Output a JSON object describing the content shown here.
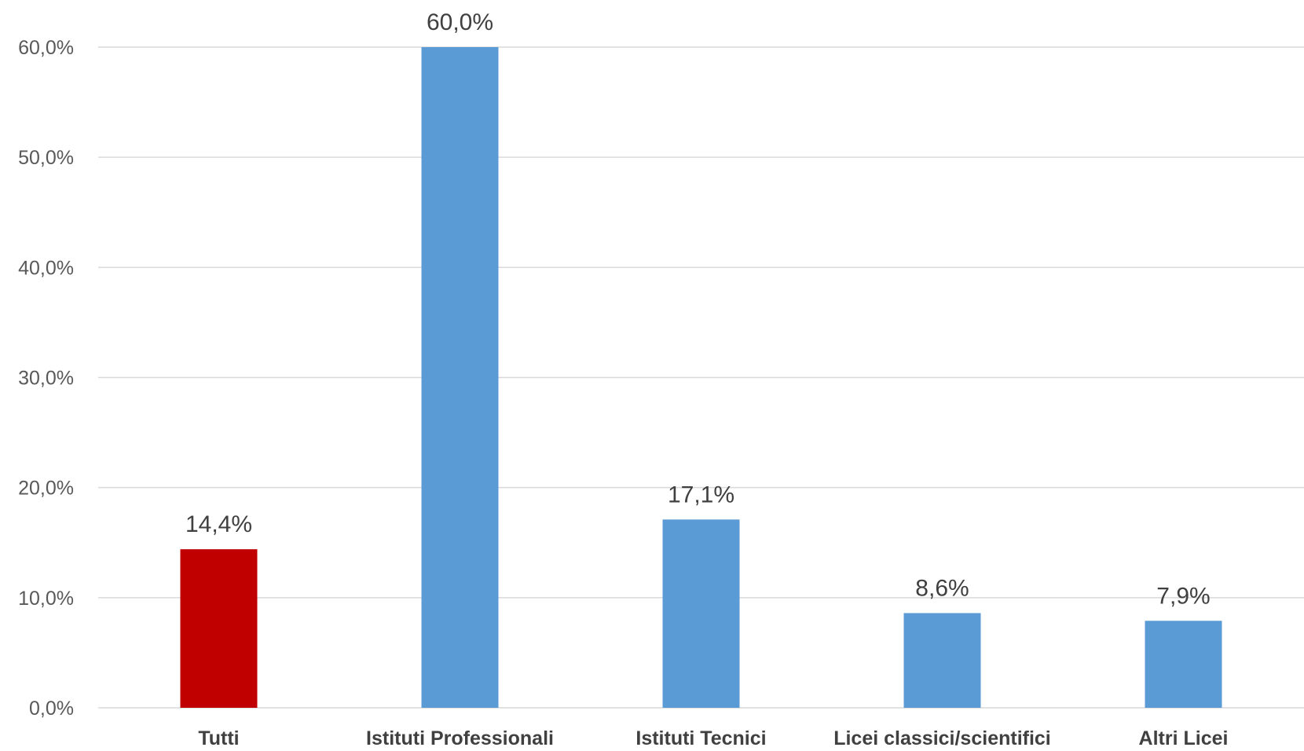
{
  "chart_data": {
    "type": "bar",
    "categories": [
      "Tutti",
      "Istituti Professionali",
      "Istituti Tecnici",
      "Licei classici/scientifici",
      "Altri Licei"
    ],
    "values": [
      14.4,
      60.0,
      17.1,
      8.6,
      7.9
    ],
    "data_labels": [
      "14,4%",
      "60,0%",
      "17,1%",
      "8,6%",
      "7,9%"
    ],
    "bar_colors": [
      "#c00000",
      "#5b9bd5",
      "#5b9bd5",
      "#5b9bd5",
      "#5b9bd5"
    ],
    "ylim": [
      0,
      60
    ],
    "yticks": [
      0,
      10,
      20,
      30,
      40,
      50,
      60
    ],
    "ytick_labels": [
      "0,0%",
      "10,0%",
      "20,0%",
      "30,0%",
      "40,0%",
      "50,0%",
      "60,0%"
    ],
    "grid": true,
    "legend": "none",
    "title": "",
    "xlabel": "",
    "ylabel": ""
  }
}
